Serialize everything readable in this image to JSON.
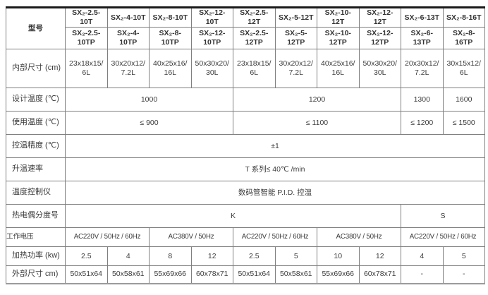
{
  "colors": {
    "border": "#7f7f7f",
    "outer_top_border": "#1a1a1a",
    "outer_bottom_border": "#9b9b9b",
    "text": "#3c3c3c"
  },
  "t": {
    "labels": {
      "model": "型号",
      "inner": "内部尺寸 (cm)",
      "design": "设计温度 (℃)",
      "working": "使用温度 (℃)",
      "accuracy": "控温精度 (℃)",
      "rate": "升温速率",
      "controller": "温度控制仪",
      "thermocouple": "热电偶分度号",
      "voltage": "工作电压",
      "power": "加热功率 (kw)",
      "outer": "外部尺寸 cm)"
    },
    "models_t": [
      "SX₂-2.5-\n10T",
      "SX₂-4-10T",
      "SX₂-8-10T",
      "SX₂-12-\n10T",
      "SX₂-2.5-\n12T",
      "SX₂-5-12T",
      "SX₂-10-\n12T",
      "SX₂-12-\n12T",
      "SX₂-6-13T",
      "SX₂-8-16T"
    ],
    "models_tp": [
      "SX₂-2.5-\n10TP",
      "SX₂-4-\n10TP",
      "SX₂-8-\n10TP",
      "SX₂-12-\n10TP",
      "SX₂-2.5-\n12TP",
      "SX₂-5-\n12TP",
      "SX₂-10-\n12TP",
      "SX₂-12-\n12TP",
      "SX₂-6-\n13TP",
      "SX₂-8-\n16TP"
    ],
    "inner_dims": [
      "23x18x15/\n6L",
      "30x20x12/\n7.2L",
      "40x25x16/\n16L",
      "50x30x20/\n30L",
      "23x18x15/\n6L",
      "30x20x12/\n7.2L",
      "40x25x16/\n16L",
      "50x30x20/\n30L",
      "20x30x12/\n7.2L",
      "30x15x12/\n6L"
    ],
    "design_temp": [
      "1000",
      "1200",
      "1300",
      "1600"
    ],
    "working_temp": [
      "≤ 900",
      "≤ 1100",
      "≤ 1200",
      "≤ 1500"
    ],
    "accuracy": "±1",
    "heating_rate": "T 系列≤ 40℃ /min",
    "controller": "数码管智能 P.I.D. 控温",
    "thermocouple": [
      "K",
      "S"
    ],
    "voltage": [
      "AC220V / 50Hz / 60Hz",
      "AC380V / 50Hz",
      "AC220V / 50Hz / 60Hz",
      "AC380V / 50Hz",
      "AC220V / 50Hz / 60Hz"
    ],
    "heating_power": [
      "2.5",
      "4",
      "8",
      "12",
      "2.5",
      "5",
      "10",
      "12",
      "4",
      "5"
    ],
    "outer_dims": [
      "50x51x64",
      "50x58x61",
      "55x69x66",
      "60x78x71",
      "50x51x64",
      "50x58x61",
      "55x69x66",
      "60x78x71",
      "-",
      "-"
    ]
  }
}
